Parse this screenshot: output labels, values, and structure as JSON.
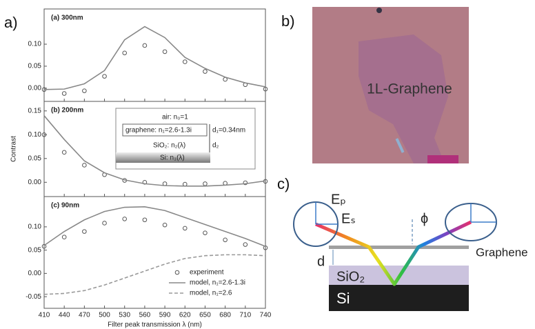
{
  "figure": {
    "panel_labels": [
      "a)",
      "b)",
      "c)"
    ]
  },
  "chart_data": [
    {
      "type": "line",
      "title": "(a) 300nm",
      "x": [
        410,
        440,
        470,
        500,
        530,
        560,
        590,
        620,
        650,
        680,
        710,
        740
      ],
      "xlim": [
        410,
        740
      ],
      "xticks": [
        410,
        440,
        470,
        500,
        530,
        560,
        590,
        620,
        650,
        680,
        710,
        740
      ],
      "ylim": [
        -0.03,
        0.18
      ],
      "yticks": [
        {
          "value": 0,
          "label": "0.00"
        },
        0.05,
        {
          "value": 0.1,
          "label": "0.10"
        }
      ],
      "series": [
        {
          "color": "#555555",
          "style": "markers",
          "values": [
            -0.003,
            -0.012,
            -0.006,
            0.027,
            0.08,
            0.097,
            0.083,
            0.06,
            0.038,
            0.02,
            0.008,
            -0.002
          ]
        },
        {
          "color": "#888888",
          "style": "solid",
          "values": [
            -0.003,
            -0.002,
            0.01,
            0.04,
            0.11,
            0.14,
            0.115,
            0.07,
            0.045,
            0.025,
            0.012,
            0.003
          ]
        }
      ]
    },
    {
      "type": "line",
      "title": "(b) 200nm",
      "y_label": "Contrast",
      "x": [
        410,
        440,
        470,
        500,
        530,
        560,
        590,
        620,
        650,
        680,
        710,
        740
      ],
      "xlim": [
        410,
        740
      ],
      "xticks": [
        410,
        440,
        470,
        500,
        530,
        560,
        590,
        620,
        650,
        680,
        710,
        740
      ],
      "ylim": [
        -0.03,
        0.17
      ],
      "yticks": [
        {
          "value": 0,
          "label": "0.00"
        },
        0.05,
        {
          "value": 0.1,
          "label": "0.10"
        },
        0.15
      ],
      "inset": {
        "air": "air: n₀=1",
        "graphene": "graphene: n₁=2.6-1.3i",
        "d1": "d₁=0.34nm",
        "sio2": "SiO₂: n₂(λ)",
        "d2": "d₂",
        "si": "Si: n₃(λ)"
      },
      "series": [
        {
          "color": "#555555",
          "style": "markers",
          "values": [
            0.1,
            0.063,
            0.036,
            0.016,
            0.004,
            0.0,
            -0.003,
            -0.004,
            -0.003,
            -0.002,
            -0.001,
            0.002
          ]
        },
        {
          "color": "#888888",
          "style": "solid",
          "values": [
            0.14,
            0.09,
            0.045,
            0.02,
            0.005,
            -0.003,
            -0.007,
            -0.008,
            -0.008,
            -0.006,
            -0.003,
            0.003
          ]
        }
      ]
    },
    {
      "type": "line",
      "title": "(c) 90nm",
      "x_label": "Filter peak transmission λ (nm)",
      "xtick_labels": true,
      "legend": "lower right",
      "x": [
        410,
        440,
        470,
        500,
        530,
        560,
        590,
        620,
        650,
        680,
        710,
        740
      ],
      "xlim": [
        410,
        740
      ],
      "xticks": [
        410,
        440,
        470,
        500,
        530,
        560,
        590,
        620,
        650,
        680,
        710,
        740
      ],
      "ylim": [
        -0.075,
        0.165
      ],
      "yticks": [
        -0.05,
        {
          "value": 0,
          "label": "0.00"
        },
        0.05,
        {
          "value": 0.1,
          "label": "0.10"
        }
      ],
      "series": [
        {
          "name": "experiment",
          "color": "#555555",
          "style": "markers",
          "values": [
            0.058,
            0.078,
            0.09,
            0.108,
            0.117,
            0.115,
            0.104,
            0.097,
            0.087,
            0.072,
            0.062,
            0.055
          ]
        },
        {
          "name": "model, n₁=2.6-1.3i",
          "color": "#888888",
          "style": "solid",
          "values": [
            0.06,
            0.09,
            0.115,
            0.133,
            0.142,
            0.143,
            0.135,
            0.12,
            0.105,
            0.09,
            0.075,
            0.058
          ]
        },
        {
          "name": "model, n₁=2.6",
          "color": "#999999",
          "style": "dashed",
          "values": [
            -0.045,
            -0.043,
            -0.037,
            -0.025,
            -0.01,
            0.005,
            0.02,
            0.032,
            0.038,
            0.04,
            0.04,
            0.038
          ]
        }
      ]
    }
  ],
  "photo": {
    "label": "1L-Graphene"
  },
  "diagram": {
    "ep": "Eₚ",
    "es": "Eₛ",
    "phi": "ϕ",
    "graphene": "Graphene",
    "d": "d",
    "sio2": "SiO₂",
    "si": "Si"
  }
}
